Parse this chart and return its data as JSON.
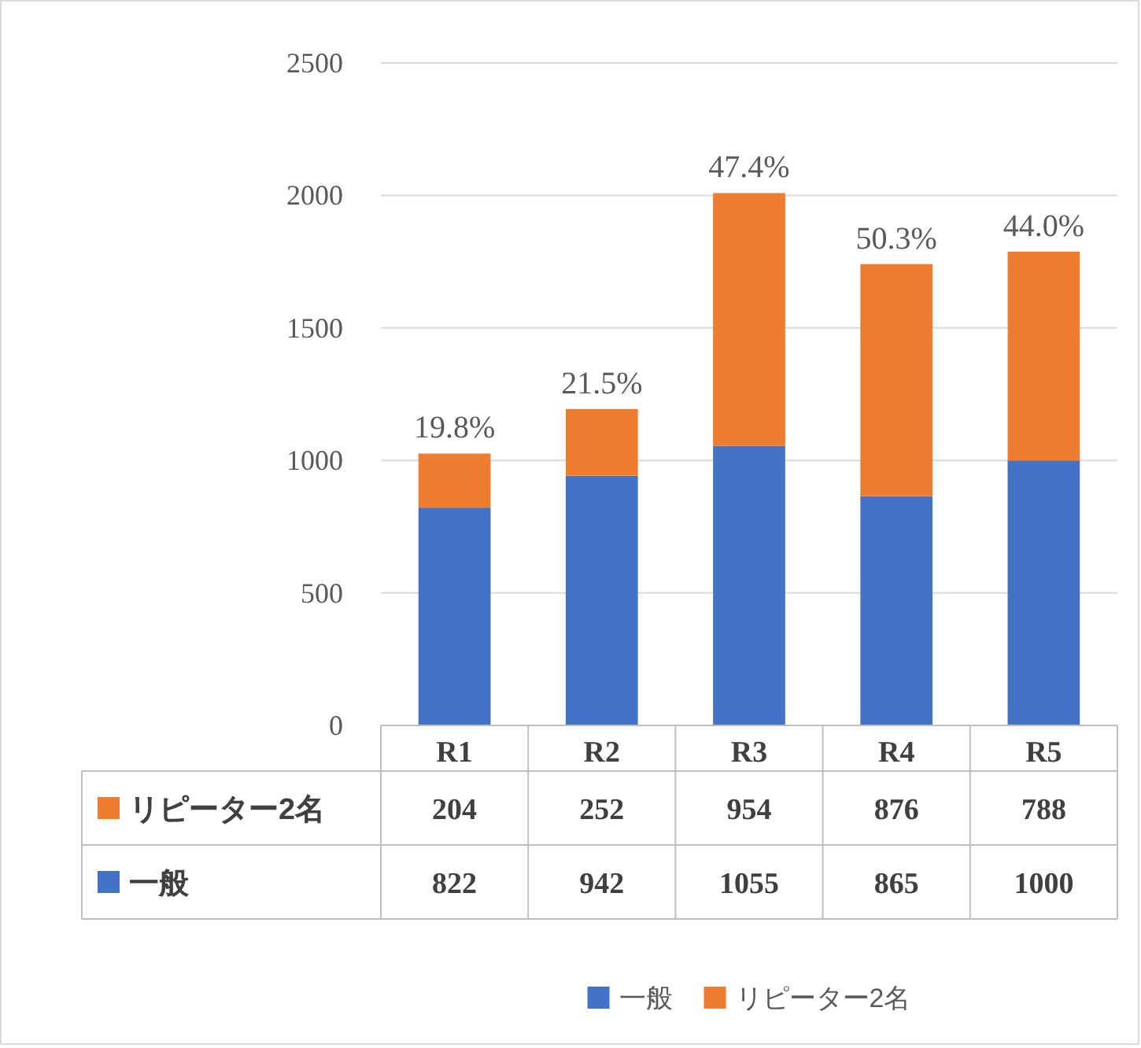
{
  "chart_data": {
    "type": "bar",
    "stacked": true,
    "categories": [
      "R1",
      "R2",
      "R3",
      "R4",
      "R5"
    ],
    "series": [
      {
        "name": "一般",
        "color": "#4472c4",
        "values": [
          822,
          942,
          1055,
          865,
          1000
        ]
      },
      {
        "name": "リピーター2名",
        "color": "#ed7d31",
        "values": [
          204,
          252,
          954,
          876,
          788
        ]
      }
    ],
    "ylim": [
      0,
      2500
    ],
    "yticks": [
      0,
      500,
      1000,
      1500,
      2000,
      2500
    ],
    "grid": "y",
    "legend": "bottom",
    "data_labels": true,
    "annotations": [
      {
        "text": "19.8%",
        "x": "R1",
        "y": 1026
      },
      {
        "text": "21.5%",
        "x": "R2",
        "y": 1194
      },
      {
        "text": "47.4%",
        "x": "R3",
        "y": 2009
      },
      {
        "text": "50.3%",
        "x": "R4",
        "y": 1741
      },
      {
        "text": "44.0%",
        "x": "R5",
        "y": 1788
      }
    ]
  }
}
